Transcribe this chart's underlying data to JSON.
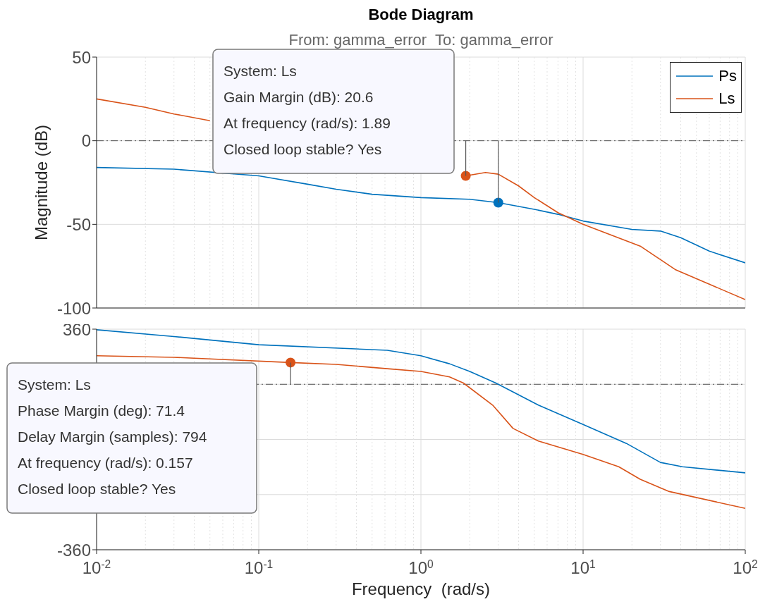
{
  "chart_data": [
    {
      "type": "line",
      "title": "Bode Diagram",
      "subtitle": "From: gamma_error  To: gamma_error",
      "ylabel": "Magnitude (dB)",
      "xlim": [
        0.01,
        100
      ],
      "xticks": [
        {
          "value": 0.01,
          "label": null
        },
        {
          "value": 0.1,
          "label": null
        },
        {
          "value": 1,
          "label": null
        },
        {
          "value": 10,
          "label": null
        },
        {
          "value": 100,
          "label": null
        }
      ],
      "ylim": [
        -100,
        50
      ],
      "yticks": [
        50,
        0,
        -50,
        -100
      ],
      "log": "x",
      "grid": true,
      "legend": "top right",
      "tick_labels": "y",
      "ref_lines": [
        {
          "axis": "y",
          "value": 0,
          "color": "#555555",
          "line_style": "dashed"
        }
      ],
      "series": [
        {
          "name": "Ps",
          "color": "#0072bd",
          "x": [
            0.01,
            0.03,
            0.1,
            0.2,
            0.3,
            0.5,
            1,
            2,
            3,
            5,
            7,
            10,
            20,
            30,
            40,
            60,
            100
          ],
          "values": [
            -16,
            -17,
            -21,
            -26,
            -29,
            -32,
            -34,
            -35,
            -37,
            -41,
            -44,
            -48,
            -53,
            -54,
            -58,
            -66,
            -73
          ]
        },
        {
          "name": "Ls",
          "color": "#d95319",
          "x": [
            0.01,
            0.02,
            0.03,
            0.05,
            0.1,
            1,
            1.8,
            1.89,
            2.5,
            3,
            4,
            5,
            7,
            10,
            22.5,
            37,
            100
          ],
          "values": [
            25,
            20,
            16,
            12,
            null,
            null,
            -20,
            -21,
            -19,
            -20,
            -27,
            -34,
            -43,
            -50,
            -63,
            -77,
            -95
          ]
        },
        {
          "type": "scatter",
          "marker": "circle",
          "color": "#0072bd",
          "x": [
            3
          ],
          "values": [
            -37
          ]
        },
        {
          "type": "scatter",
          "marker": "circle",
          "color": "#d95319",
          "x": [
            1.89
          ],
          "values": [
            -21
          ]
        }
      ],
      "annotations": [
        "System: Ls\nGain Margin (dB): 20.6\nAt frequency (rad/s): 1.89\nClosed loop stable? Yes"
      ]
    },
    {
      "type": "line",
      "xlabel": "Frequency  (rad/s)",
      "xlim": [
        0.01,
        100
      ],
      "xticks": [
        {
          "value": 0.01,
          "label": "10$^{-2}$"
        },
        {
          "value": 0.1,
          "label": "10$^{-1}$"
        },
        {
          "value": 1,
          "label": "10$^{0}$"
        },
        {
          "value": 10,
          "label": "10$^{1}$"
        },
        {
          "value": 100,
          "label": "10$^{2}$"
        }
      ],
      "ylim": [
        -360,
        360
      ],
      "yticks": [
        360,
        {
          "value": 180,
          "label": null
        },
        {
          "value": 0,
          "label": null
        },
        {
          "value": -180,
          "label": null
        },
        -360
      ],
      "log": "x",
      "grid": true,
      "ref_lines": [
        {
          "axis": "y",
          "value": 180,
          "color": "#555555",
          "line_style": "dashed"
        }
      ],
      "series": [
        {
          "color": "#0072bd",
          "x": [
            0.01,
            0.03,
            0.1,
            0.62,
            1,
            1.5,
            2,
            2.9,
            5.3,
            10,
            18.5,
            30,
            41,
            100
          ],
          "values": [
            358,
            336,
            309,
            291,
            273,
            247,
            222,
            184,
            112,
            49,
            -13,
            -75,
            -89,
            -109
          ]
        },
        {
          "color": "#d95319",
          "x": [
            0.01,
            0.03,
            0.157,
            0.3,
            0.62,
            1,
            1.5,
            1.83,
            2.77,
            3.7,
            5.3,
            10,
            16.6,
            22.5,
            34,
            100
          ],
          "values": [
            273,
            268,
            251,
            245,
            231,
            222,
            204,
            184,
            112,
            36,
            -5,
            -49,
            -89,
            -130,
            -170,
            -225
          ]
        },
        {
          "type": "scatter",
          "marker": "circle",
          "color": "#d95319",
          "x": [
            0.157
          ],
          "values": [
            251
          ]
        }
      ],
      "annotations": [
        "System: Ls\nPhase Margin (deg): 71.4\nDelay Margin (samples): 794\nAt frequency (rad/s): 0.157\nClosed loop stable? Yes"
      ]
    }
  ]
}
